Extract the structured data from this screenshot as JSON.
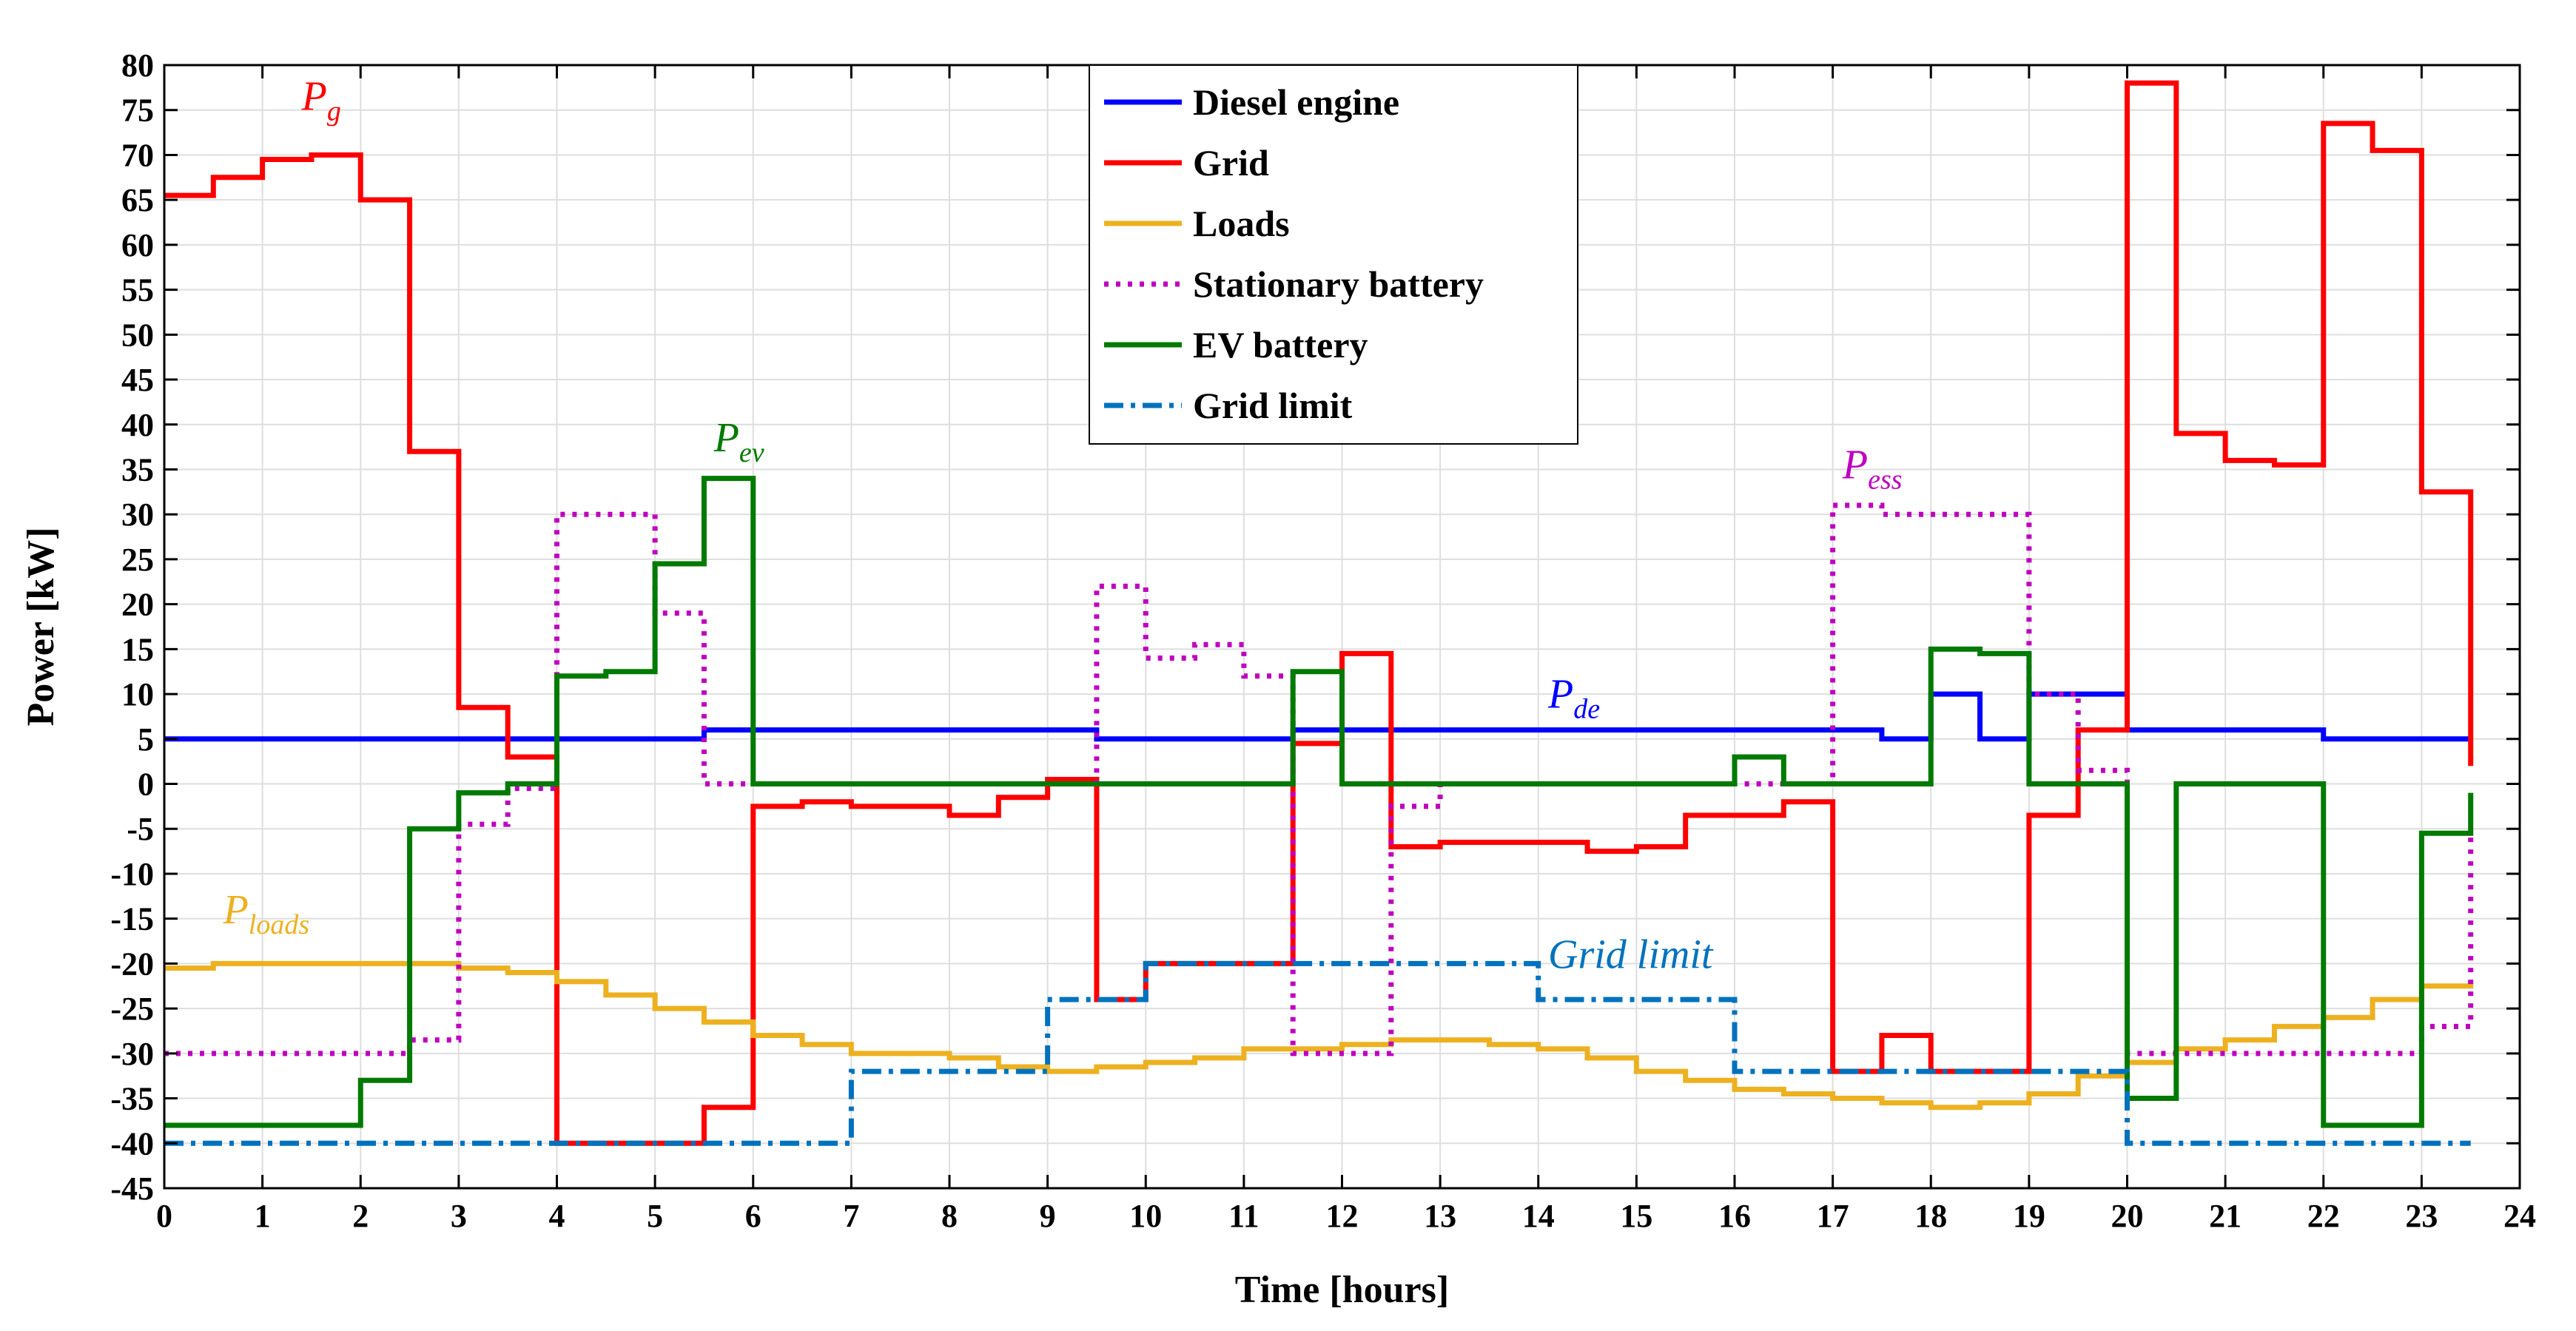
{
  "chart_data": {
    "type": "line",
    "step": true,
    "xlabel": "Time [hours]",
    "ylabel": "Power [kW]",
    "xlim": [
      0,
      24
    ],
    "ylim": [
      -45,
      80
    ],
    "xticks": [
      0,
      1,
      2,
      3,
      4,
      5,
      6,
      7,
      8,
      9,
      10,
      11,
      12,
      13,
      14,
      15,
      16,
      17,
      18,
      19,
      20,
      21,
      22,
      23,
      24
    ],
    "yticks": [
      -45,
      -40,
      -35,
      -30,
      -25,
      -20,
      -15,
      -10,
      -5,
      0,
      5,
      10,
      15,
      20,
      25,
      30,
      35,
      40,
      45,
      50,
      55,
      60,
      65,
      70,
      75,
      80
    ],
    "grid": true,
    "legend_position": "top-center",
    "series": [
      {
        "name": "Diesel engine",
        "color": "#0000ff",
        "dash": "solid",
        "x": [
          0,
          0.5,
          1,
          1.5,
          2,
          2.5,
          3,
          3.5,
          4,
          4.5,
          5,
          5.5,
          6,
          6.5,
          7,
          7.5,
          8,
          8.5,
          9,
          9.5,
          10,
          10.5,
          11,
          11.5,
          12,
          12.5,
          13,
          13.5,
          14,
          14.5,
          15,
          15.5,
          16,
          16.5,
          17,
          17.5,
          18,
          18.5,
          19,
          19.5,
          20,
          20.5,
          21,
          21.5,
          22,
          22.5,
          23,
          23.5
        ],
        "values": [
          5,
          5,
          5,
          5,
          5,
          5,
          5,
          5,
          5,
          5,
          5,
          6,
          6,
          6,
          6,
          6,
          6,
          6,
          6,
          5,
          5,
          5,
          5,
          6,
          6,
          6,
          6,
          6,
          6,
          6,
          6,
          6,
          6,
          6,
          6,
          5,
          10,
          5,
          10,
          10,
          6,
          6,
          6,
          6,
          5,
          5,
          5,
          5
        ]
      },
      {
        "name": "Grid",
        "color": "#ff0000",
        "dash": "solid",
        "x": [
          0,
          0.5,
          1,
          1.5,
          2,
          2.5,
          3,
          3.5,
          4,
          4.5,
          5,
          5.5,
          6,
          6.5,
          7,
          7.5,
          8,
          8.5,
          9,
          9.5,
          10,
          10.5,
          11,
          11.5,
          12,
          12.5,
          13,
          13.5,
          14,
          14.5,
          15,
          15.5,
          16,
          16.5,
          17,
          17.5,
          18,
          18.5,
          19,
          19.5,
          20,
          20.5,
          21,
          21.5,
          22,
          22.5,
          23,
          23.5
        ],
        "values": [
          65.5,
          67.5,
          69.5,
          70,
          65,
          37,
          8.5,
          3,
          -40,
          -40,
          -40,
          -36,
          -2.5,
          -2,
          -2.5,
          -2.5,
          -3.5,
          -1.5,
          0.5,
          -24,
          -20,
          -20,
          -20,
          4.5,
          14.5,
          -7,
          -6.5,
          -6.5,
          -6.5,
          -7.5,
          -7,
          -3.5,
          -3.5,
          -2,
          -32,
          -28,
          -32,
          -32,
          -3.5,
          6,
          78,
          39,
          36,
          35.5,
          73.5,
          70.5,
          32.5,
          2
        ]
      },
      {
        "name": "Loads",
        "color": "#edb120",
        "dash": "solid",
        "x": [
          0,
          0.5,
          1,
          1.5,
          2,
          2.5,
          3,
          3.5,
          4,
          4.5,
          5,
          5.5,
          6,
          6.5,
          7,
          7.5,
          8,
          8.5,
          9,
          9.5,
          10,
          10.5,
          11,
          11.5,
          12,
          12.5,
          13,
          13.5,
          14,
          14.5,
          15,
          15.5,
          16,
          16.5,
          17,
          17.5,
          18,
          18.5,
          19,
          19.5,
          20,
          20.5,
          21,
          21.5,
          22,
          22.5,
          23,
          23.5
        ],
        "values": [
          -20.5,
          -20,
          -20,
          -20,
          -20,
          -20,
          -20.5,
          -21,
          -22,
          -23.5,
          -25,
          -26.5,
          -28,
          -29,
          -30,
          -30,
          -30.5,
          -31.5,
          -32,
          -31.5,
          -31,
          -30.5,
          -29.5,
          -29.5,
          -29,
          -28.5,
          -28.5,
          -29,
          -29.5,
          -30.5,
          -32,
          -33,
          -34,
          -34.5,
          -35,
          -35.5,
          -36,
          -35.5,
          -34.5,
          -32.5,
          -31,
          -29.5,
          -28.5,
          -27,
          -26,
          -24,
          -22.5,
          -22
        ]
      },
      {
        "name": "Stationary battery",
        "color": "#bf00bf",
        "dash": "dotted",
        "x": [
          0,
          0.5,
          1,
          1.5,
          2,
          2.5,
          3,
          3.5,
          4,
          4.5,
          5,
          5.5,
          6,
          6.5,
          7,
          7.5,
          8,
          8.5,
          9,
          9.5,
          10,
          10.5,
          11,
          11.5,
          12,
          12.5,
          13,
          13.5,
          14,
          14.5,
          15,
          15.5,
          16,
          16.5,
          17,
          17.5,
          18,
          18.5,
          19,
          19.5,
          20,
          20.5,
          21,
          21.5,
          22,
          22.5,
          23,
          23.5
        ],
        "values": [
          -30,
          -30,
          -30,
          -30,
          -30,
          -28.5,
          -4.5,
          -0.5,
          30,
          30,
          19,
          0,
          0,
          0,
          0,
          0,
          0,
          0,
          0,
          22,
          14,
          15.5,
          12,
          -30,
          -30,
          -2.5,
          0,
          0,
          0,
          0,
          0,
          0,
          0,
          0,
          31,
          30,
          30,
          30,
          10,
          1.5,
          -30,
          -30,
          -30,
          -30,
          -30,
          -30,
          -27,
          -5
        ]
      },
      {
        "name": "EV battery",
        "color": "#007a00",
        "dash": "solid",
        "x": [
          0,
          0.5,
          1,
          1.5,
          2,
          2.5,
          3,
          3.5,
          4,
          4.5,
          5,
          5.5,
          6,
          6.5,
          7,
          7.5,
          8,
          8.5,
          9,
          9.5,
          10,
          10.5,
          11,
          11.5,
          12,
          12.5,
          13,
          13.5,
          14,
          14.5,
          15,
          15.5,
          16,
          16.5,
          17,
          17.5,
          18,
          18.5,
          19,
          19.5,
          20,
          20.5,
          21,
          21.5,
          22,
          22.5,
          23,
          23.5
        ],
        "values": [
          -38,
          -38,
          -38,
          -38,
          -33,
          -5,
          -1,
          0,
          12,
          12.5,
          24.5,
          34,
          0,
          0,
          0,
          0,
          0,
          0,
          0,
          0,
          0,
          0,
          0,
          12.5,
          0,
          0,
          0,
          0,
          0,
          0,
          0,
          0,
          3,
          0,
          0,
          0,
          15,
          14.5,
          0,
          0,
          -35,
          0,
          0,
          0,
          -38,
          -38,
          -5.5,
          -1
        ]
      },
      {
        "name": "Grid limit",
        "color": "#0072bd",
        "dash": "dashdot",
        "x": [
          0,
          0.5,
          1,
          1.5,
          2,
          2.5,
          3,
          3.5,
          4,
          4.5,
          5,
          5.5,
          6,
          6.5,
          7,
          7.5,
          8,
          8.5,
          9,
          9.5,
          10,
          10.5,
          11,
          11.5,
          12,
          12.5,
          13,
          13.5,
          14,
          14.5,
          15,
          15.5,
          16,
          16.5,
          17,
          17.5,
          18,
          18.5,
          19,
          19.5,
          20,
          20.5,
          21,
          21.5,
          22,
          22.5,
          23,
          23.5
        ],
        "values": [
          -40,
          -40,
          -40,
          -40,
          -40,
          -40,
          -40,
          -40,
          -40,
          -40,
          -40,
          -40,
          -40,
          -40,
          -32,
          -32,
          -32,
          -32,
          -24,
          -24,
          -20,
          -20,
          -20,
          -20,
          -20,
          -20,
          -20,
          -20,
          -24,
          -24,
          -24,
          -24,
          -32,
          -32,
          -32,
          -32,
          -32,
          -32,
          -32,
          -32,
          -40,
          -40,
          -40,
          -40,
          -40,
          -40,
          -40,
          -40
        ]
      }
    ],
    "annotations": [
      {
        "main": "P",
        "sub": "g",
        "x": 1.4,
        "y": 75,
        "color": "#ff0000"
      },
      {
        "main": "P",
        "sub": "ev",
        "x": 5.6,
        "y": 37,
        "color": "#007a00"
      },
      {
        "main": "P",
        "sub": "ess",
        "x": 17.1,
        "y": 34,
        "color": "#bf00bf"
      },
      {
        "main": "P",
        "sub": "de",
        "x": 14.1,
        "y": 8.5,
        "color": "#0000ff"
      },
      {
        "main": "P",
        "sub": "loads",
        "x": 0.6,
        "y": -15.5,
        "color": "#edb120"
      },
      {
        "main": "Grid limit",
        "sub": "",
        "x": 14.1,
        "y": -20.5,
        "color": "#0072bd"
      }
    ]
  }
}
